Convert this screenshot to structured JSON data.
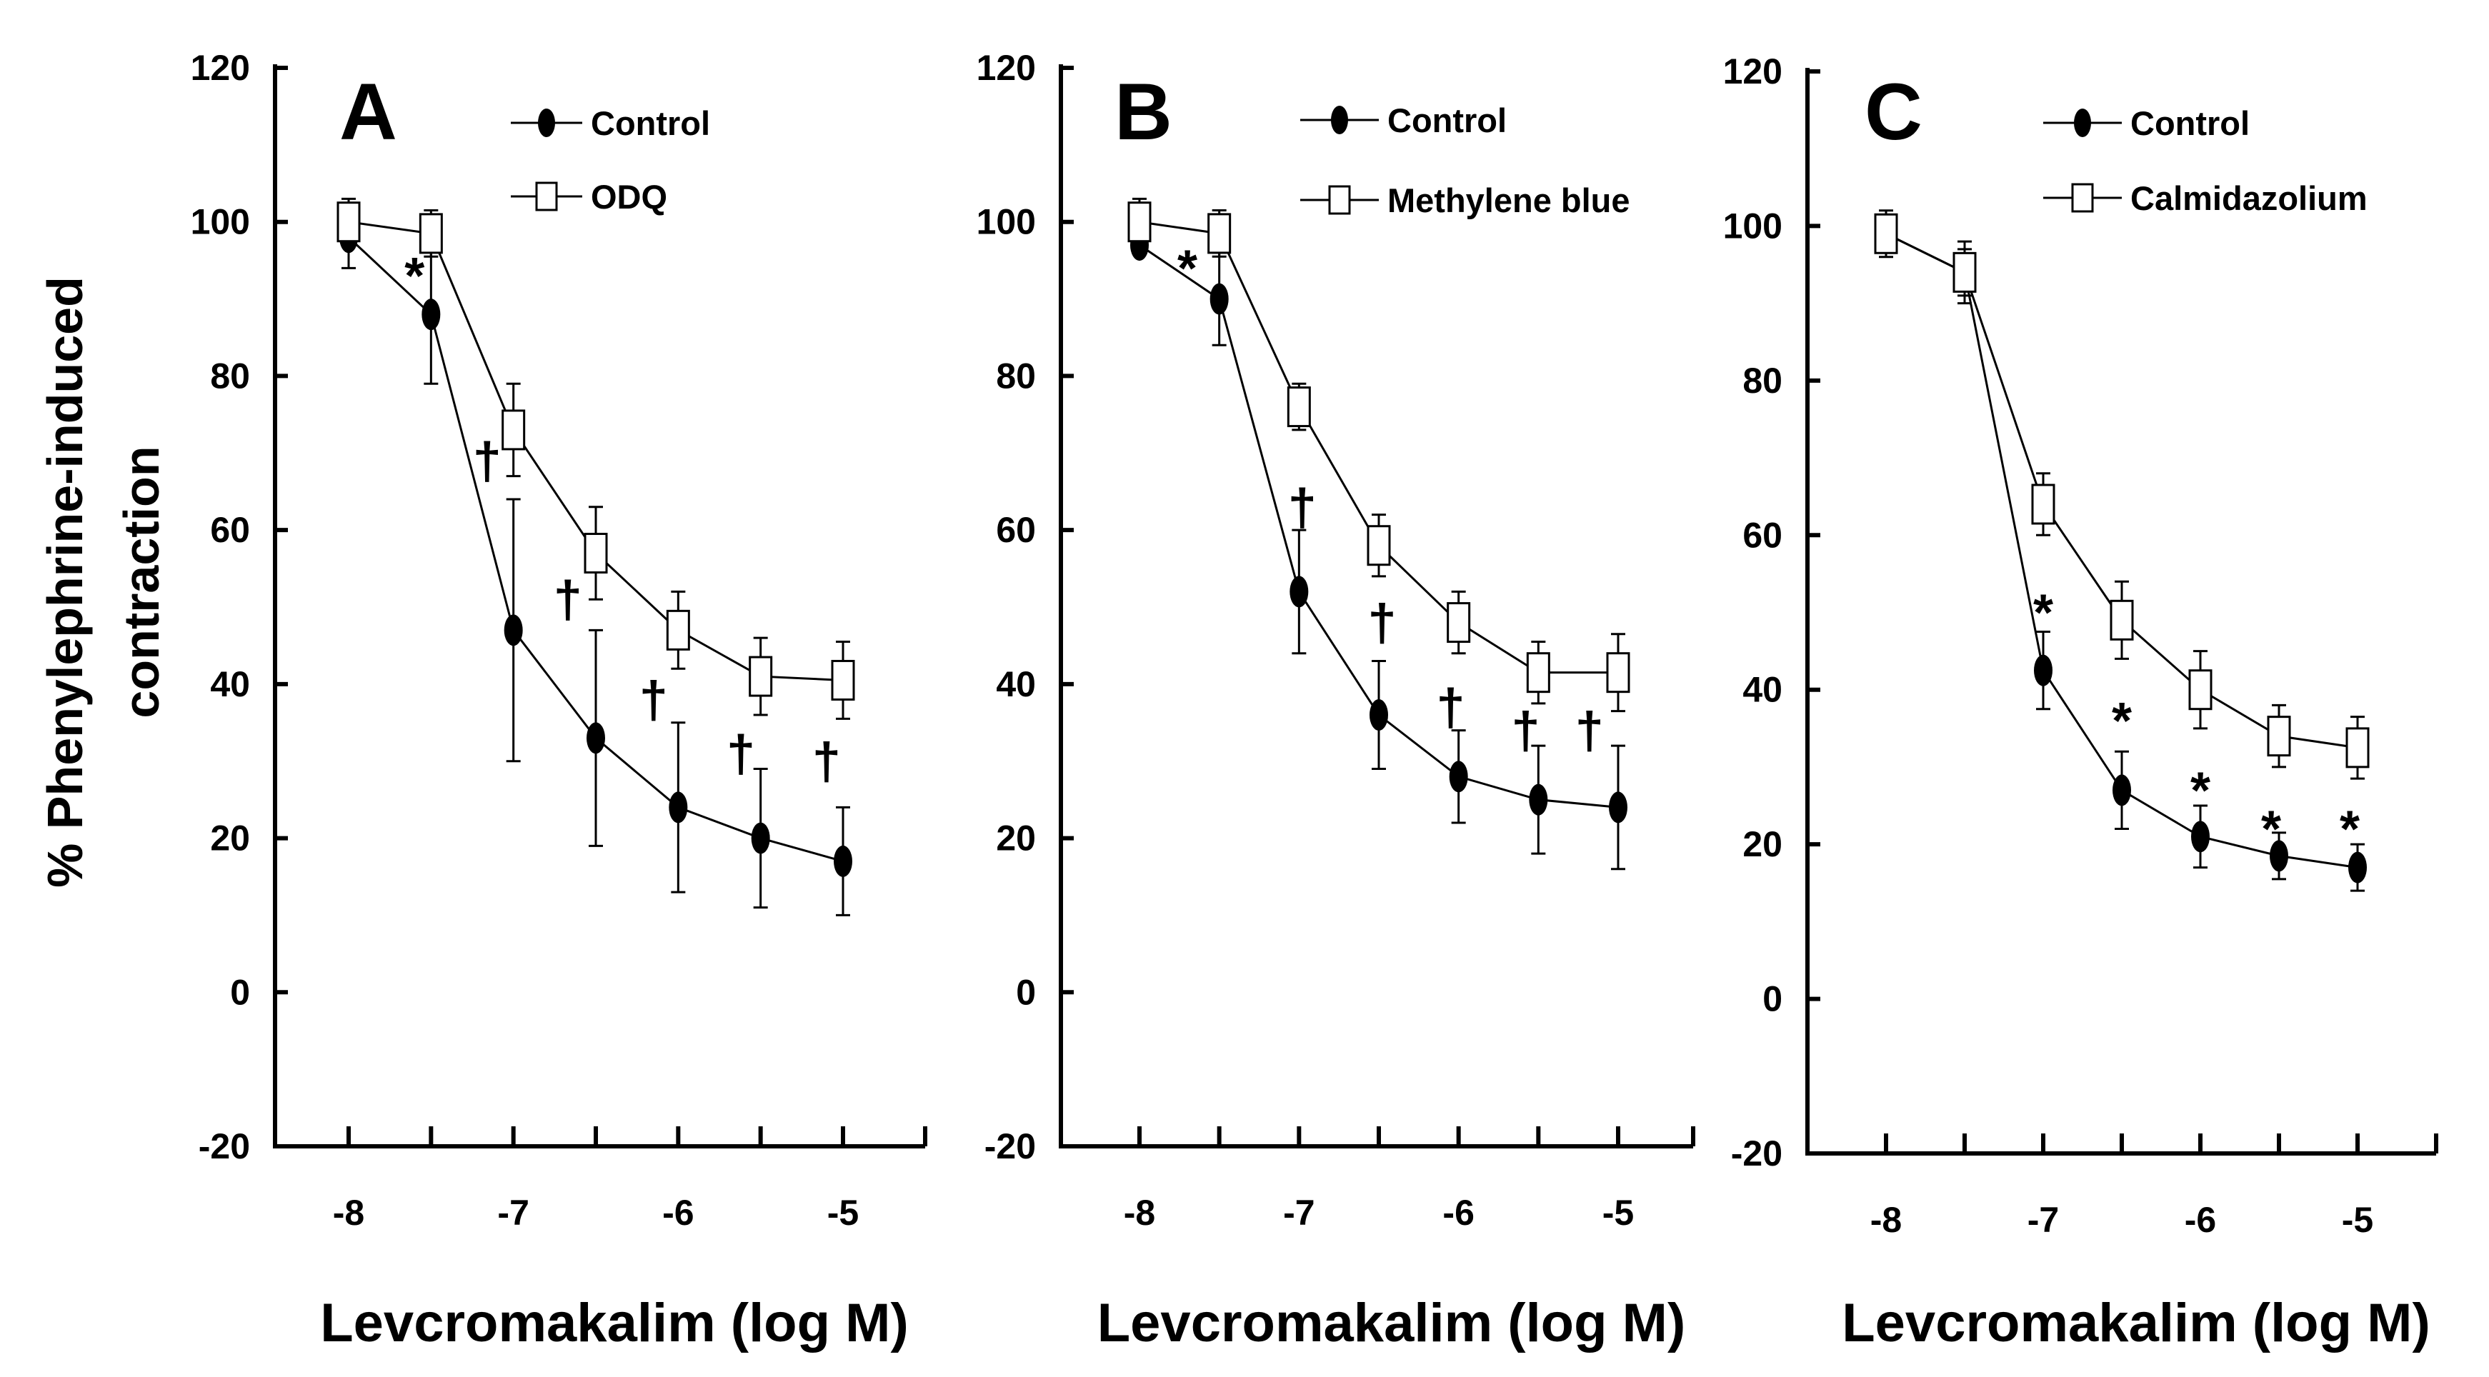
{
  "chart_data": [
    {
      "type": "line",
      "panel_letter": "A",
      "xlabel": "Levcromakalim (log M)",
      "ylabel_line1": "% Phenylephrine-induced",
      "ylabel_line2": "contraction",
      "ylim": [
        -20,
        120
      ],
      "yticks": [
        "120",
        "100",
        "80",
        "60",
        "40",
        "20",
        "0",
        "-20"
      ],
      "xticks": [
        "-8",
        "-7",
        "-6",
        "-5"
      ],
      "x": [
        -8,
        -7.5,
        -7,
        -6.5,
        -6,
        -5.5,
        -5
      ],
      "series": [
        {
          "name": "Control",
          "marker": "filled-ellipse",
          "values": [
            98,
            88,
            47,
            33,
            24,
            20,
            17
          ],
          "errors": [
            4,
            9,
            17,
            14,
            11,
            9,
            7
          ]
        },
        {
          "name": "ODQ",
          "marker": "open-square",
          "values": [
            100,
            98.5,
            73,
            57,
            47,
            41,
            40.5
          ],
          "errors": [
            3,
            3,
            6,
            6,
            5,
            5,
            5
          ]
        }
      ],
      "annotations": [
        {
          "text": "*",
          "x": -7.6,
          "y": 93
        },
        {
          "text": "†",
          "x": -7.16,
          "y": 69
        },
        {
          "text": "†",
          "x": -6.67,
          "y": 51
        },
        {
          "text": "†",
          "x": -6.15,
          "y": 38
        },
        {
          "text": "†",
          "x": -5.62,
          "y": 31
        },
        {
          "text": "†",
          "x": -5.1,
          "y": 30
        }
      ]
    },
    {
      "type": "line",
      "panel_letter": "B",
      "xlabel": "Levcromakalim (log M)",
      "ylim": [
        -20,
        120
      ],
      "yticks": [
        "120",
        "100",
        "80",
        "60",
        "40",
        "20",
        "0",
        "-20"
      ],
      "xticks": [
        "-8",
        "-7",
        "-6",
        "-5"
      ],
      "x": [
        -8,
        -7.5,
        -7,
        -6.5,
        -6,
        -5.5,
        -5
      ],
      "series": [
        {
          "name": "Control",
          "marker": "filled-ellipse",
          "values": [
            97,
            90,
            52,
            36,
            28,
            25,
            24
          ],
          "errors": [
            1,
            6,
            8,
            7,
            6,
            7,
            8
          ]
        },
        {
          "name": "Methylene blue",
          "marker": "open-square",
          "values": [
            100,
            98.5,
            76,
            58,
            48,
            41.5,
            41.5
          ],
          "errors": [
            3,
            3,
            3,
            4,
            4,
            4,
            5
          ]
        }
      ],
      "annotations": [
        {
          "text": "*",
          "x": -7.7,
          "y": 94
        },
        {
          "text": "†",
          "x": -6.98,
          "y": 63
        },
        {
          "text": "†",
          "x": -6.48,
          "y": 48
        },
        {
          "text": "†",
          "x": -6.05,
          "y": 37
        },
        {
          "text": "†",
          "x": -5.58,
          "y": 34
        },
        {
          "text": "†",
          "x": -5.18,
          "y": 34
        }
      ]
    },
    {
      "type": "line",
      "panel_letter": "C",
      "xlabel": "Levcromakalim (log M)",
      "ylim": [
        -20,
        120
      ],
      "yticks": [
        "120",
        "100",
        "80",
        "60",
        "40",
        "20",
        "0",
        "-20"
      ],
      "xticks": [
        "-8",
        "-7",
        "-6",
        "-5"
      ],
      "x": [
        -8,
        -7.5,
        -7,
        -6.5,
        -6,
        -5.5,
        -5
      ],
      "series": [
        {
          "name": "Control",
          "marker": "filled-ellipse",
          "values": [
            99,
            94,
            42.5,
            27,
            21,
            18.5,
            17
          ],
          "errors": [
            2,
            3,
            5,
            5,
            4,
            3,
            3
          ]
        },
        {
          "name": "Calmidazolium",
          "marker": "open-square",
          "values": [
            99,
            94,
            64,
            49,
            40,
            34,
            32.5
          ],
          "errors": [
            3,
            4,
            4,
            5,
            5,
            4,
            4
          ]
        }
      ],
      "annotations": [
        {
          "text": "*",
          "x": -7,
          "y": 50
        },
        {
          "text": "*",
          "x": -6.5,
          "y": 36
        },
        {
          "text": "*",
          "x": -6,
          "y": 27
        },
        {
          "text": "*",
          "x": -5.55,
          "y": 22
        },
        {
          "text": "*",
          "x": -5.05,
          "y": 22
        }
      ]
    }
  ]
}
